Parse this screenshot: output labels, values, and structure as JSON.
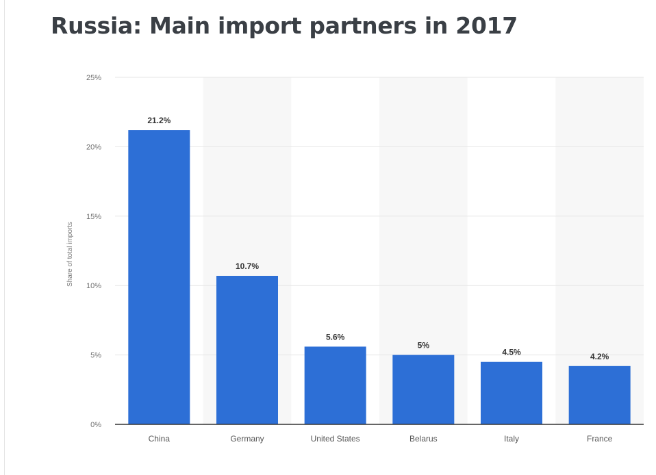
{
  "chart_data": {
    "type": "bar",
    "title": "Russia: Main import partners in 2017",
    "ylabel": "Share of total imports",
    "xlabel": "",
    "categories": [
      "China",
      "Germany",
      "United States",
      "Belarus",
      "Italy",
      "France"
    ],
    "values": [
      21.2,
      10.7,
      5.6,
      5,
      4.5,
      4.2
    ],
    "data_labels": [
      "21.2%",
      "10.7%",
      "5.6%",
      "5%",
      "4.5%",
      "4.2%"
    ],
    "ylim": [
      0,
      25
    ],
    "yticks": [
      0,
      5,
      10,
      15,
      20,
      25
    ],
    "ytick_labels": [
      "0%",
      "5%",
      "10%",
      "15%",
      "20%",
      "25%"
    ],
    "grid": true,
    "bar_color": "#2d6fd6",
    "alternate_band_color": "#f7f7f7"
  }
}
